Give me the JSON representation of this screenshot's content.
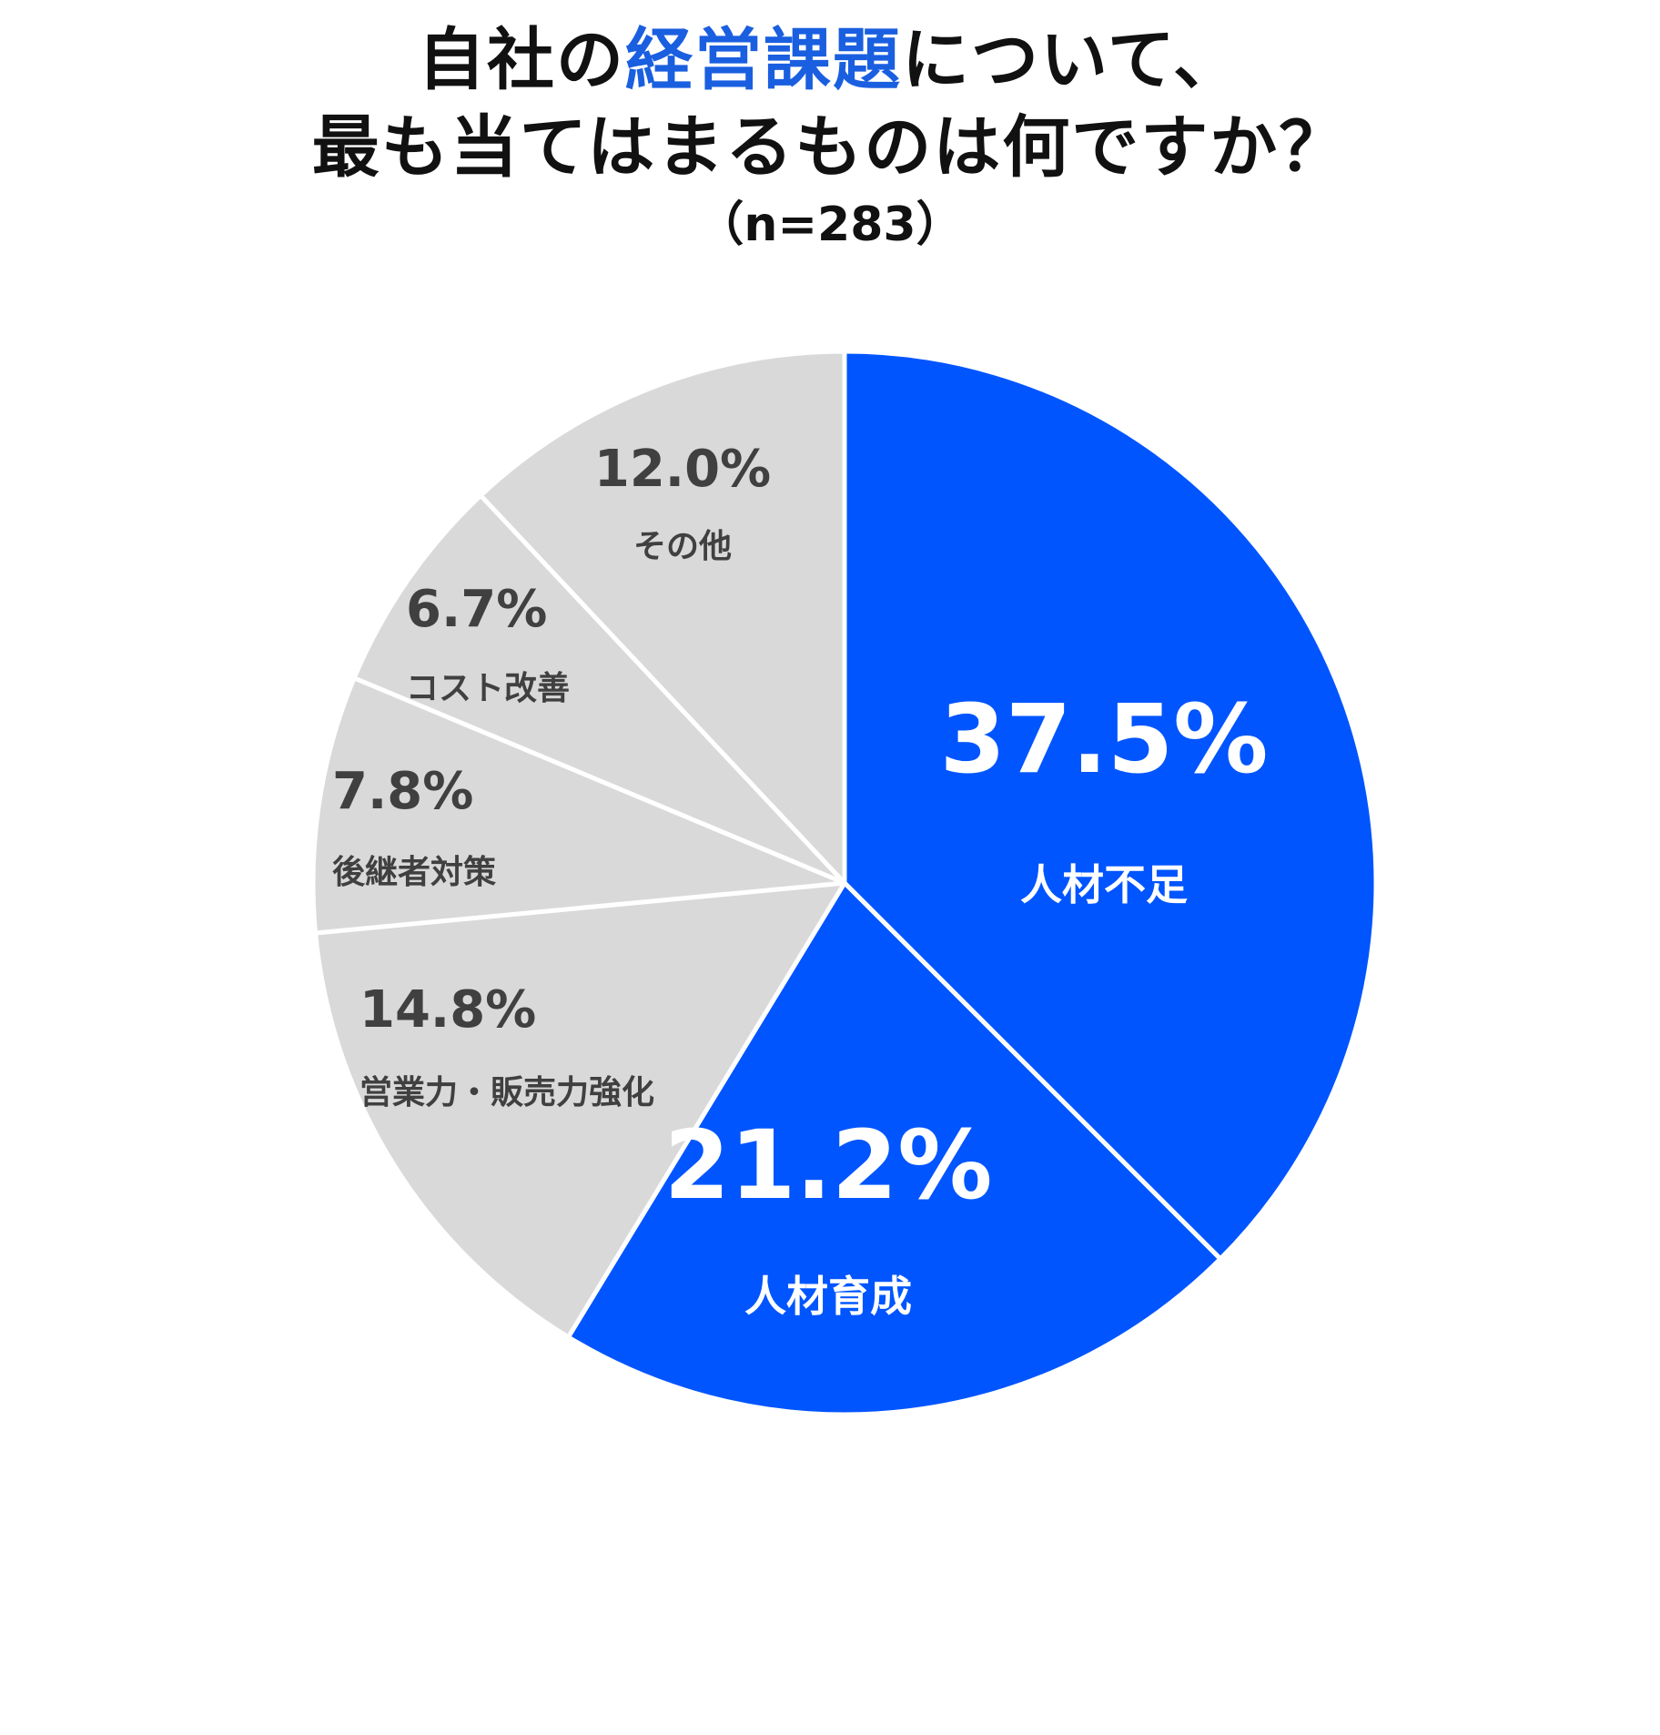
{
  "title": {
    "line1_before": "自社の",
    "line1_highlight": "経営課題",
    "line1_after": "について、",
    "line2": "最も当てはまるものは何ですか？",
    "sample": "（n=283）"
  },
  "colors": {
    "highlight": "#1a5fe0",
    "blue_slice": "#0055ff",
    "gray_slice": "#d9d9d9",
    "separator": "#ffffff",
    "dark_text": "#404040",
    "light_text": "#ffffff",
    "title_text": "#111111"
  },
  "chart_data": {
    "type": "pie",
    "start": "12 o'clock",
    "direction": "clockwise",
    "slices": [
      {
        "label": "人材不足",
        "value": 37.5,
        "value_label": "37.5%",
        "color": "#0055ff",
        "label_color": "#ffffff"
      },
      {
        "label": "人材育成",
        "value": 21.2,
        "value_label": "21.2%",
        "color": "#0055ff",
        "label_color": "#ffffff"
      },
      {
        "label": "営業力・販売力強化",
        "value": 14.8,
        "value_label": "14.8%",
        "color": "#d9d9d9",
        "label_color": "#404040"
      },
      {
        "label": "後継者対策",
        "value": 7.8,
        "value_label": "7.8%",
        "color": "#d9d9d9",
        "label_color": "#404040"
      },
      {
        "label": "コスト改善",
        "value": 6.7,
        "value_label": "6.7%",
        "color": "#d9d9d9",
        "label_color": "#404040"
      },
      {
        "label": "その他",
        "value": 12.0,
        "value_label": "12.0%",
        "color": "#d9d9d9",
        "label_color": "#404040"
      }
    ]
  }
}
